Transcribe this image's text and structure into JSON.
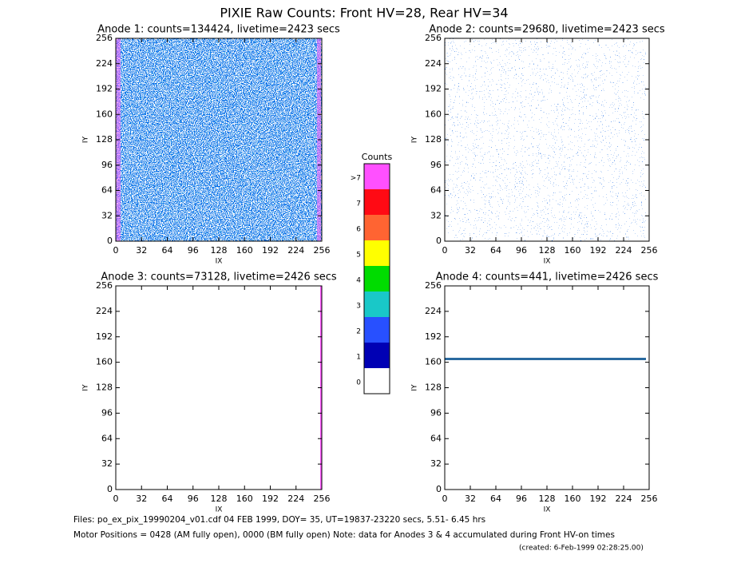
{
  "title": "PIXIE Raw Counts:  Front HV=28, Rear HV=34",
  "chart_data": [
    {
      "type": "heatmap",
      "title": "Anode 1: counts=134424, livetime=2423 secs",
      "xlabel": "IX",
      "ylabel": "IY",
      "xlim": [
        0,
        256
      ],
      "ylim": [
        0,
        256
      ],
      "xticks": [
        0,
        32,
        64,
        96,
        128,
        160,
        192,
        224,
        256
      ],
      "yticks": [
        0,
        32,
        64,
        96,
        128,
        160,
        192,
        224,
        256
      ]
    },
    {
      "type": "heatmap",
      "title": "Anode 2: counts=29680, livetime=2423 secs",
      "xlabel": "IX",
      "ylabel": "IY",
      "xlim": [
        0,
        256
      ],
      "ylim": [
        0,
        256
      ],
      "xticks": [
        0,
        32,
        64,
        96,
        128,
        160,
        192,
        224,
        256
      ],
      "yticks": [
        0,
        32,
        64,
        96,
        128,
        160,
        192,
        224,
        256
      ]
    },
    {
      "type": "heatmap",
      "title": "Anode 3: counts=73128, livetime=2426 secs",
      "xlabel": "IX",
      "ylabel": "IY",
      "xlim": [
        0,
        256
      ],
      "ylim": [
        0,
        256
      ],
      "xticks": [
        0,
        32,
        64,
        96,
        128,
        160,
        192,
        224,
        256
      ],
      "yticks": [
        0,
        32,
        64,
        96,
        128,
        160,
        192,
        224,
        256
      ]
    },
    {
      "type": "heatmap",
      "title": "Anode 4: counts=441, livetime=2426 secs",
      "xlabel": "IX",
      "ylabel": "IY",
      "xlim": [
        0,
        256
      ],
      "ylim": [
        0,
        256
      ],
      "xticks": [
        0,
        32,
        64,
        96,
        128,
        160,
        192,
        224,
        256
      ],
      "yticks": [
        0,
        32,
        64,
        96,
        128,
        160,
        192,
        224,
        256
      ]
    }
  ],
  "colorbar": {
    "title": "Counts",
    "labels": [
      "0",
      "1",
      "2",
      "3",
      "4",
      "5",
      "6",
      "7",
      ">7"
    ],
    "colors": [
      "#ffffff",
      "#0000b4",
      "#2850ff",
      "#19c8c8",
      "#00dc00",
      "#ffff00",
      "#ff6432",
      "#ff0a14",
      "#ff50ff"
    ]
  },
  "footer": [
    "Files: po_ex_pix_19990204_v01.cdf    04 FEB 1999, DOY= 35, UT=19837-23220 secs,  5.51- 6.45 hrs",
    "Motor Positions = 0428 (AM fully open), 0000 (BM fully open)    Note: data for Anodes 3 & 4 accumulated during Front HV-on times",
    "(created:  6-Feb-1999 02:28:25.00)"
  ]
}
